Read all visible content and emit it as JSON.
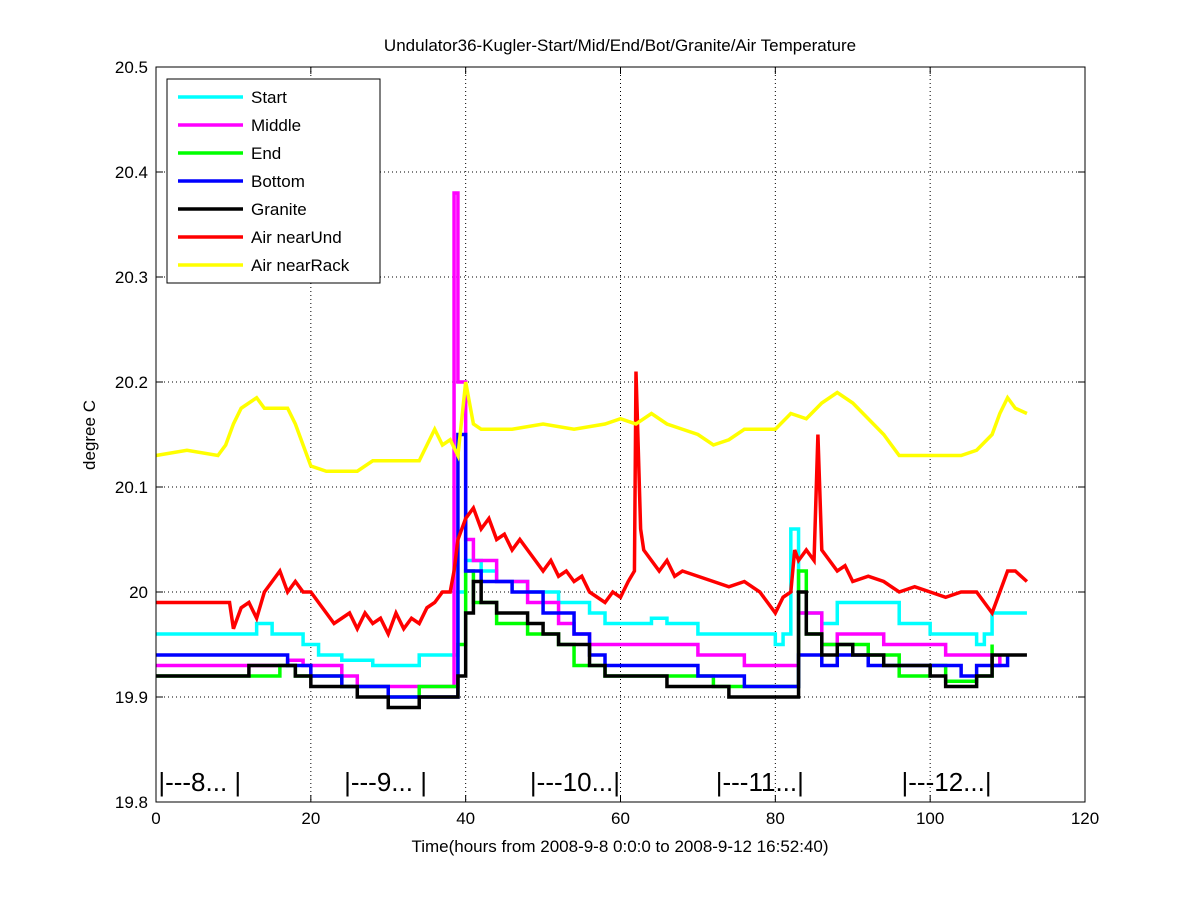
{
  "chart_data": {
    "type": "line",
    "title": "Undulator36-Kugler-Start/Mid/End/Bot/Granite/Air Temperature",
    "xlabel": "Time(hours from 2008-9-8 0:0:0 to 2008-9-12 16:52:40)",
    "ylabel": "degree C",
    "xlim": [
      0,
      120
    ],
    "ylim": [
      19.8,
      20.5
    ],
    "xticks": [
      0,
      20,
      40,
      60,
      80,
      100,
      120
    ],
    "yticks": [
      19.8,
      19.9,
      20,
      20.1,
      20.2,
      20.3,
      20.4,
      20.5
    ],
    "ytick_labels": [
      "19.8",
      "19.9",
      "20",
      "20.1",
      "20.2",
      "20.3",
      "20.4",
      "20.5"
    ],
    "grid": true,
    "legend_position": "top-left",
    "annotations": [
      {
        "text": "|---8...  |",
        "x": 0.3,
        "y": 19.82
      },
      {
        "text": "|---9...  |",
        "x": 24.3,
        "y": 19.82
      },
      {
        "text": "|---10...|",
        "x": 48.3,
        "y": 19.82
      },
      {
        "text": "|---11...|",
        "x": 72.3,
        "y": 19.82
      },
      {
        "text": "|---12...|",
        "x": 96.3,
        "y": 19.82
      }
    ],
    "series": [
      {
        "name": "Start",
        "color": "#00ffff",
        "step": true,
        "points": [
          [
            0,
            19.96
          ],
          [
            13,
            19.97
          ],
          [
            15,
            19.96
          ],
          [
            19,
            19.95
          ],
          [
            21,
            19.94
          ],
          [
            24,
            19.935
          ],
          [
            28,
            19.93
          ],
          [
            34,
            19.94
          ],
          [
            38,
            19.94
          ],
          [
            39,
            20.0
          ],
          [
            40,
            20.03
          ],
          [
            42,
            20.02
          ],
          [
            44,
            20.01
          ],
          [
            48,
            20.0
          ],
          [
            52,
            19.99
          ],
          [
            56,
            19.98
          ],
          [
            58,
            19.97
          ],
          [
            64,
            19.975
          ],
          [
            66,
            19.97
          ],
          [
            70,
            19.96
          ],
          [
            80,
            19.95
          ],
          [
            81,
            19.96
          ],
          [
            82,
            20.06
          ],
          [
            83,
            19.98
          ],
          [
            86,
            19.97
          ],
          [
            88,
            19.99
          ],
          [
            96,
            19.97
          ],
          [
            100,
            19.96
          ],
          [
            106,
            19.95
          ],
          [
            107,
            19.96
          ],
          [
            108,
            19.98
          ],
          [
            112.5,
            19.98
          ]
        ]
      },
      {
        "name": "Middle",
        "color": "#ff00ff",
        "step": true,
        "points": [
          [
            0,
            19.93
          ],
          [
            17,
            19.935
          ],
          [
            19,
            19.93
          ],
          [
            24,
            19.92
          ],
          [
            26,
            19.91
          ],
          [
            38,
            19.91
          ],
          [
            38.5,
            20.38
          ],
          [
            39,
            20.2
          ],
          [
            40,
            20.05
          ],
          [
            41,
            20.03
          ],
          [
            44,
            20.01
          ],
          [
            48,
            19.99
          ],
          [
            52,
            19.97
          ],
          [
            54,
            19.96
          ],
          [
            56,
            19.95
          ],
          [
            66,
            19.95
          ],
          [
            70,
            19.94
          ],
          [
            76,
            19.93
          ],
          [
            82,
            19.93
          ],
          [
            83,
            19.98
          ],
          [
            86,
            19.95
          ],
          [
            88,
            19.96
          ],
          [
            94,
            19.95
          ],
          [
            102,
            19.94
          ],
          [
            108,
            19.93
          ],
          [
            109,
            19.94
          ]
        ]
      },
      {
        "name": "End",
        "color": "#00ff00",
        "step": true,
        "points": [
          [
            0,
            19.92
          ],
          [
            13,
            19.92
          ],
          [
            16,
            19.93
          ],
          [
            18,
            19.92
          ],
          [
            24,
            19.91
          ],
          [
            30,
            19.9
          ],
          [
            34,
            19.91
          ],
          [
            38,
            19.91
          ],
          [
            39,
            19.95
          ],
          [
            40,
            20.02
          ],
          [
            41,
            19.99
          ],
          [
            44,
            19.97
          ],
          [
            48,
            19.96
          ],
          [
            52,
            19.95
          ],
          [
            54,
            19.93
          ],
          [
            58,
            19.92
          ],
          [
            70,
            19.92
          ],
          [
            72,
            19.91
          ],
          [
            82,
            19.91
          ],
          [
            83,
            20.02
          ],
          [
            84,
            19.96
          ],
          [
            86,
            19.95
          ],
          [
            92,
            19.94
          ],
          [
            96,
            19.92
          ],
          [
            100,
            19.93
          ],
          [
            102,
            19.915
          ],
          [
            106,
            19.92
          ],
          [
            108,
            19.95
          ]
        ]
      },
      {
        "name": "Bottom",
        "color": "#0000ff",
        "step": true,
        "points": [
          [
            0,
            19.94
          ],
          [
            17,
            19.93
          ],
          [
            20,
            19.92
          ],
          [
            24,
            19.91
          ],
          [
            30,
            19.9
          ],
          [
            38,
            19.9
          ],
          [
            39,
            20.15
          ],
          [
            40,
            20.02
          ],
          [
            42,
            20.01
          ],
          [
            46,
            20.0
          ],
          [
            50,
            19.98
          ],
          [
            54,
            19.96
          ],
          [
            56,
            19.94
          ],
          [
            58,
            19.93
          ],
          [
            64,
            19.93
          ],
          [
            70,
            19.92
          ],
          [
            76,
            19.91
          ],
          [
            82,
            19.91
          ],
          [
            83,
            19.94
          ],
          [
            86,
            19.93
          ],
          [
            88,
            19.94
          ],
          [
            92,
            19.93
          ],
          [
            98,
            19.93
          ],
          [
            104,
            19.92
          ],
          [
            106,
            19.93
          ],
          [
            110,
            19.94
          ]
        ]
      },
      {
        "name": "Granite",
        "color": "#000000",
        "step": true,
        "points": [
          [
            0,
            19.92
          ],
          [
            12,
            19.93
          ],
          [
            16,
            19.93
          ],
          [
            18,
            19.92
          ],
          [
            20,
            19.91
          ],
          [
            26,
            19.9
          ],
          [
            30,
            19.89
          ],
          [
            34,
            19.9
          ],
          [
            38,
            19.9
          ],
          [
            39,
            19.92
          ],
          [
            40,
            19.98
          ],
          [
            41,
            20.01
          ],
          [
            42,
            19.99
          ],
          [
            44,
            19.98
          ],
          [
            48,
            19.97
          ],
          [
            50,
            19.96
          ],
          [
            52,
            19.95
          ],
          [
            56,
            19.93
          ],
          [
            58,
            19.92
          ],
          [
            64,
            19.92
          ],
          [
            66,
            19.91
          ],
          [
            72,
            19.91
          ],
          [
            74,
            19.9
          ],
          [
            82,
            19.9
          ],
          [
            83,
            20.0
          ],
          [
            84,
            19.96
          ],
          [
            86,
            19.94
          ],
          [
            88,
            19.95
          ],
          [
            90,
            19.94
          ],
          [
            94,
            19.93
          ],
          [
            100,
            19.92
          ],
          [
            102,
            19.91
          ],
          [
            106,
            19.92
          ],
          [
            108,
            19.94
          ],
          [
            112.5,
            19.94
          ]
        ]
      },
      {
        "name": "Air nearUnd",
        "color": "#ff0000",
        "step": false,
        "points": [
          [
            0,
            19.99
          ],
          [
            9.5,
            19.99
          ],
          [
            10,
            19.965
          ],
          [
            11,
            19.985
          ],
          [
            12,
            19.99
          ],
          [
            13,
            19.975
          ],
          [
            14,
            20.0
          ],
          [
            15,
            20.01
          ],
          [
            16,
            20.02
          ],
          [
            17,
            20.0
          ],
          [
            18,
            20.01
          ],
          [
            19,
            20.0
          ],
          [
            20,
            20.0
          ],
          [
            21,
            19.99
          ],
          [
            22,
            19.98
          ],
          [
            23,
            19.97
          ],
          [
            24,
            19.975
          ],
          [
            25,
            19.98
          ],
          [
            26,
            19.965
          ],
          [
            27,
            19.98
          ],
          [
            28,
            19.97
          ],
          [
            29,
            19.975
          ],
          [
            30,
            19.96
          ],
          [
            31,
            19.98
          ],
          [
            32,
            19.965
          ],
          [
            33,
            19.975
          ],
          [
            34,
            19.97
          ],
          [
            35,
            19.985
          ],
          [
            36,
            19.99
          ],
          [
            37,
            20.0
          ],
          [
            38,
            20.0
          ],
          [
            38.5,
            20.02
          ],
          [
            39,
            20.05
          ],
          [
            40,
            20.07
          ],
          [
            41,
            20.08
          ],
          [
            42,
            20.06
          ],
          [
            43,
            20.07
          ],
          [
            44,
            20.05
          ],
          [
            45,
            20.055
          ],
          [
            46,
            20.04
          ],
          [
            47,
            20.05
          ],
          [
            48,
            20.04
          ],
          [
            49,
            20.03
          ],
          [
            50,
            20.02
          ],
          [
            51,
            20.03
          ],
          [
            52,
            20.015
          ],
          [
            53,
            20.02
          ],
          [
            54,
            20.01
          ],
          [
            55,
            20.015
          ],
          [
            56,
            20.0
          ],
          [
            57,
            19.995
          ],
          [
            58,
            19.99
          ],
          [
            59,
            20.0
          ],
          [
            60,
            19.995
          ],
          [
            61,
            20.01
          ],
          [
            61.8,
            20.02
          ],
          [
            62,
            20.21
          ],
          [
            62.6,
            20.06
          ],
          [
            63,
            20.04
          ],
          [
            64,
            20.03
          ],
          [
            65,
            20.02
          ],
          [
            66,
            20.03
          ],
          [
            67,
            20.015
          ],
          [
            68,
            20.02
          ],
          [
            70,
            20.015
          ],
          [
            72,
            20.01
          ],
          [
            74,
            20.005
          ],
          [
            76,
            20.01
          ],
          [
            78,
            20.0
          ],
          [
            79,
            19.99
          ],
          [
            80,
            19.98
          ],
          [
            81,
            19.995
          ],
          [
            82,
            20.0
          ],
          [
            82.5,
            20.04
          ],
          [
            83,
            20.03
          ],
          [
            84,
            20.04
          ],
          [
            85,
            20.03
          ],
          [
            85.5,
            20.15
          ],
          [
            86,
            20.04
          ],
          [
            87,
            20.03
          ],
          [
            88,
            20.02
          ],
          [
            89,
            20.025
          ],
          [
            90,
            20.01
          ],
          [
            92,
            20.015
          ],
          [
            94,
            20.01
          ],
          [
            96,
            20.0
          ],
          [
            98,
            20.005
          ],
          [
            100,
            20.0
          ],
          [
            102,
            19.995
          ],
          [
            104,
            20.0
          ],
          [
            106,
            20.0
          ],
          [
            107,
            19.99
          ],
          [
            108,
            19.98
          ],
          [
            109,
            20.0
          ],
          [
            110,
            20.02
          ],
          [
            111,
            20.02
          ],
          [
            112.5,
            20.01
          ]
        ]
      },
      {
        "name": "Air nearRack",
        "color": "#ffff00",
        "step": false,
        "points": [
          [
            0,
            20.13
          ],
          [
            4,
            20.135
          ],
          [
            8,
            20.13
          ],
          [
            9,
            20.14
          ],
          [
            10,
            20.16
          ],
          [
            11,
            20.175
          ],
          [
            13,
            20.185
          ],
          [
            14,
            20.175
          ],
          [
            17,
            20.175
          ],
          [
            18,
            20.16
          ],
          [
            19,
            20.14
          ],
          [
            20,
            20.12
          ],
          [
            22,
            20.115
          ],
          [
            26,
            20.115
          ],
          [
            28,
            20.125
          ],
          [
            34,
            20.125
          ],
          [
            35,
            20.14
          ],
          [
            36,
            20.155
          ],
          [
            37,
            20.14
          ],
          [
            38,
            20.145
          ],
          [
            39,
            20.13
          ],
          [
            40,
            20.2
          ],
          [
            41,
            20.16
          ],
          [
            42,
            20.155
          ],
          [
            46,
            20.155
          ],
          [
            50,
            20.16
          ],
          [
            54,
            20.155
          ],
          [
            58,
            20.16
          ],
          [
            60,
            20.165
          ],
          [
            62,
            20.16
          ],
          [
            64,
            20.17
          ],
          [
            66,
            20.16
          ],
          [
            68,
            20.155
          ],
          [
            70,
            20.15
          ],
          [
            72,
            20.14
          ],
          [
            74,
            20.145
          ],
          [
            76,
            20.155
          ],
          [
            80,
            20.155
          ],
          [
            82,
            20.17
          ],
          [
            84,
            20.165
          ],
          [
            86,
            20.18
          ],
          [
            88,
            20.19
          ],
          [
            90,
            20.18
          ],
          [
            92,
            20.165
          ],
          [
            94,
            20.15
          ],
          [
            96,
            20.13
          ],
          [
            100,
            20.13
          ],
          [
            104,
            20.13
          ],
          [
            106,
            20.135
          ],
          [
            108,
            20.15
          ],
          [
            109,
            20.17
          ],
          [
            110,
            20.185
          ],
          [
            111,
            20.175
          ],
          [
            112.5,
            20.17
          ]
        ]
      }
    ]
  }
}
